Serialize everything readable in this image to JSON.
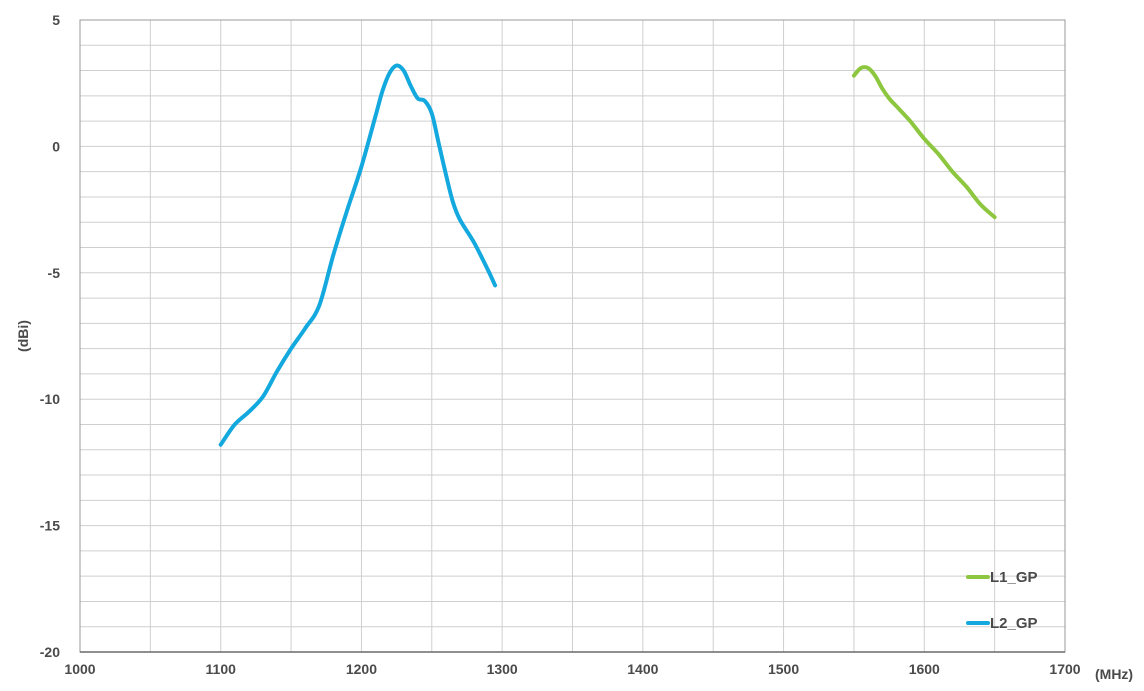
{
  "chart_data": {
    "type": "line",
    "title": "",
    "xlabel": "",
    "ylabel": "(dBi)",
    "x_unit": "(MHz)",
    "xlim": [
      1000,
      1700
    ],
    "ylim": [
      -20,
      5
    ],
    "xticks": [
      1000,
      1100,
      1200,
      1300,
      1400,
      1500,
      1600,
      1700
    ],
    "yticks": [
      5,
      0,
      -5,
      -10,
      -15,
      -20
    ],
    "grid": true,
    "legend_position": "bottom-right",
    "series": [
      {
        "name": "L1_GP",
        "color": "#8DC63F",
        "x": [
          1550,
          1555,
          1560,
          1565,
          1570,
          1575,
          1580,
          1590,
          1600,
          1610,
          1620,
          1630,
          1640,
          1650
        ],
        "y": [
          2.8,
          3.1,
          3.1,
          2.8,
          2.3,
          1.9,
          1.6,
          1.0,
          0.3,
          -0.3,
          -1.0,
          -1.6,
          -2.3,
          -2.8
        ]
      },
      {
        "name": "L2_GP",
        "color": "#14A9DE",
        "x": [
          1100,
          1110,
          1120,
          1130,
          1140,
          1150,
          1160,
          1170,
          1180,
          1190,
          1200,
          1210,
          1215,
          1220,
          1225,
          1230,
          1235,
          1240,
          1245,
          1250,
          1255,
          1260,
          1265,
          1270,
          1280,
          1290,
          1295
        ],
        "y": [
          -11.8,
          -11.0,
          -10.5,
          -9.9,
          -8.9,
          -8.0,
          -7.2,
          -6.3,
          -4.3,
          -2.5,
          -0.8,
          1.2,
          2.2,
          2.9,
          3.2,
          3.0,
          2.4,
          1.9,
          1.8,
          1.3,
          0.1,
          -1.1,
          -2.2,
          -2.9,
          -3.8,
          -4.9,
          -5.5
        ]
      }
    ]
  }
}
